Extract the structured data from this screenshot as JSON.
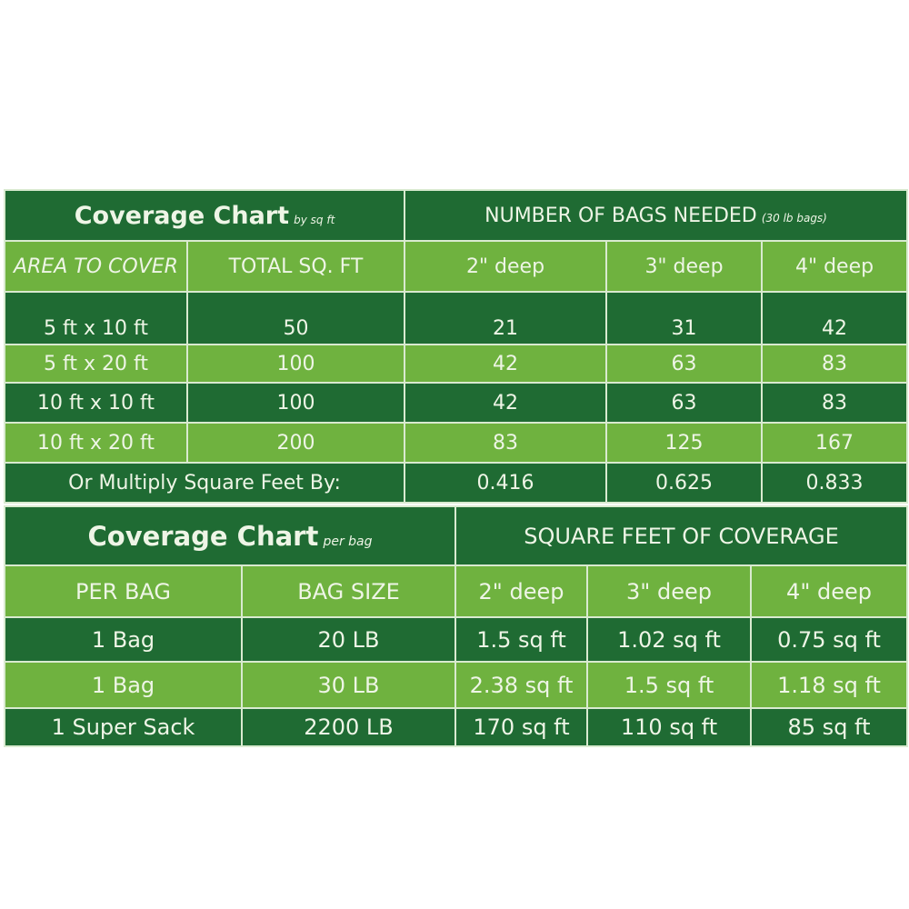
{
  "chart1": {
    "title": "Coverage Chart",
    "title_suffix": "by sq ft",
    "group_header": "NUMBER OF BAGS NEEDED",
    "group_header_suffix": "(30 lb bags)",
    "columns": [
      "AREA TO COVER",
      "TOTAL SQ. FT",
      "2\" deep",
      "3\" deep",
      "4\" deep"
    ],
    "rows": [
      [
        "5 ft x 10 ft",
        "50",
        "21",
        "31",
        "42"
      ],
      [
        "5 ft x 20 ft",
        "100",
        "42",
        "63",
        "83"
      ],
      [
        "10 ft x 10 ft",
        "100",
        "42",
        "63",
        "83"
      ],
      [
        "10 ft x 20 ft",
        "200",
        "83",
        "125",
        "167"
      ]
    ],
    "multiplier_label": "Or Multiply Square Feet By:",
    "multipliers": [
      "0.416",
      "0.625",
      "0.833"
    ]
  },
  "chart2": {
    "title": "Coverage Chart",
    "title_suffix": "per bag",
    "group_header": "SQUARE FEET OF COVERAGE",
    "columns": [
      "PER BAG",
      "BAG SIZE",
      "2\" deep",
      "3\" deep",
      "4\" deep"
    ],
    "rows": [
      [
        "1 Bag",
        "20 LB",
        "1.5 sq ft",
        "1.02 sq ft",
        "0.75 sq ft"
      ],
      [
        "1 Bag",
        "30 LB",
        "2.38 sq ft",
        "1.5 sq ft",
        "1.18 sq ft"
      ],
      [
        "1 Super Sack",
        "2200 LB",
        "170 sq ft",
        "110 sq ft",
        "85 sq ft"
      ]
    ]
  },
  "colors": {
    "dark_green": "#1f6b33",
    "light_green": "#6fb23f",
    "text": "#eef5e6"
  }
}
